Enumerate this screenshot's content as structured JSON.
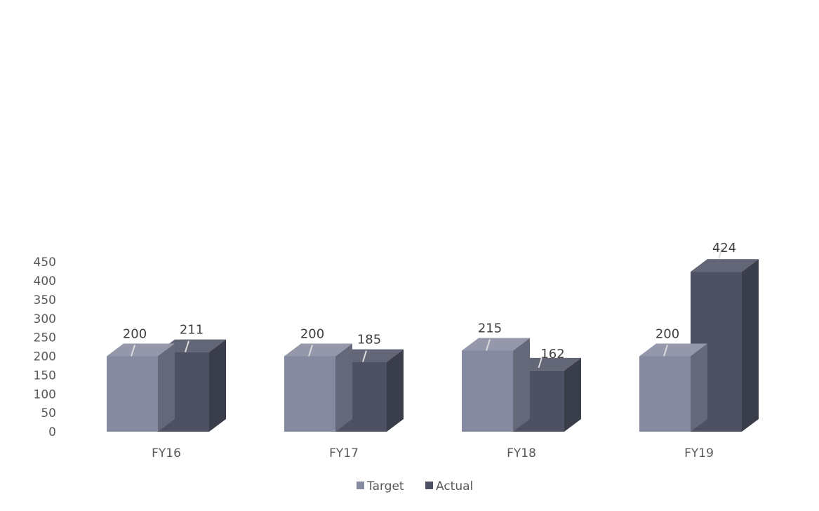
{
  "chart_data": {
    "type": "bar",
    "variant": "3d-clustered-column",
    "title": "",
    "xlabel": "",
    "ylabel": "",
    "categories": [
      "FY16",
      "FY17",
      "FY18",
      "FY19"
    ],
    "series": [
      {
        "name": "Target",
        "values": [
          200,
          200,
          215,
          200
        ],
        "color": "#868aa0"
      },
      {
        "name": "Actual",
        "values": [
          211,
          185,
          162,
          424
        ],
        "color": "#4d5163"
      }
    ],
    "ylim": [
      0,
      450
    ],
    "yticks": [
      0,
      50,
      100,
      150,
      200,
      250,
      300,
      350,
      400,
      450
    ],
    "grid": false,
    "legend_position": "bottom",
    "data_labels": true
  }
}
